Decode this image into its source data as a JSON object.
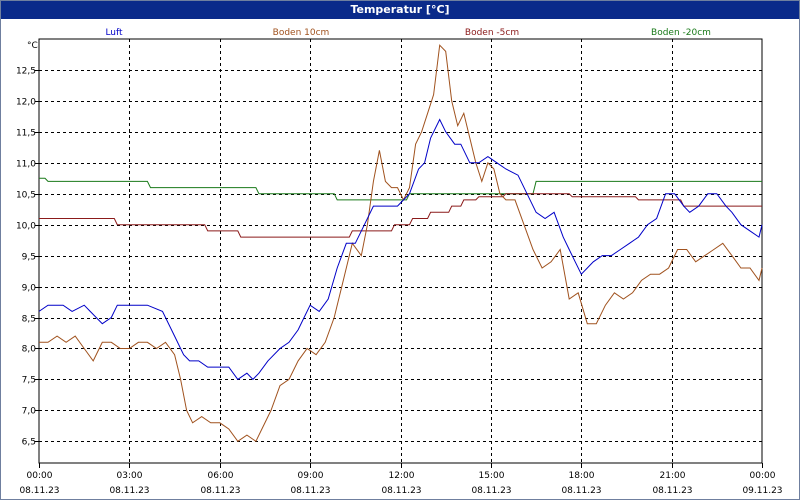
{
  "window": {
    "title": "Temperatur [°C]"
  },
  "chart_data": {
    "type": "line",
    "title": "Temperatur [°C]",
    "ylabel": "°C",
    "xlabel": "",
    "ylim": [
      6.15,
      13.0
    ],
    "xlim_hours": [
      0,
      24
    ],
    "grid": true,
    "legend": "top",
    "y_ticks": [
      "6,5",
      "7,0",
      "7,5",
      "8,0",
      "8,5",
      "9,0",
      "9,5",
      "10,0",
      "10,5",
      "11,0",
      "11,5",
      "12,0",
      "12,5"
    ],
    "y_tick_values": [
      6.5,
      7.0,
      7.5,
      8.0,
      8.5,
      9.0,
      9.5,
      10.0,
      10.5,
      11.0,
      11.5,
      12.0,
      12.5
    ],
    "x_ticks": [
      {
        "time": "00:00",
        "date": "08.11.23"
      },
      {
        "time": "03:00",
        "date": "08.11.23"
      },
      {
        "time": "06:00",
        "date": "08.11.23"
      },
      {
        "time": "09:00",
        "date": "08.11.23"
      },
      {
        "time": "12:00",
        "date": "08.11.23"
      },
      {
        "time": "15:00",
        "date": "08.11.23"
      },
      {
        "time": "18:00",
        "date": "08.11.23"
      },
      {
        "time": "21:00",
        "date": "08.11.23"
      },
      {
        "time": "00:00",
        "date": "09.11.23"
      }
    ],
    "series": [
      {
        "name": "Luft",
        "color": "#0000c8",
        "x": [
          0,
          0.3,
          0.8,
          1.1,
          1.5,
          1.7,
          2.1,
          2.4,
          2.6,
          3.0,
          3.6,
          4.1,
          4.5,
          4.8,
          5.0,
          5.3,
          5.6,
          6.0,
          6.3,
          6.6,
          6.9,
          7.1,
          7.3,
          7.6,
          8.0,
          8.3,
          8.6,
          8.8,
          9.0,
          9.3,
          9.6,
          9.9,
          10.2,
          10.5,
          10.8,
          11.1,
          11.5,
          11.9,
          12.1,
          12.3,
          12.6,
          12.8,
          13.0,
          13.3,
          13.5,
          13.8,
          14.0,
          14.3,
          14.6,
          14.9,
          15.2,
          15.5,
          15.9,
          16.2,
          16.5,
          16.8,
          17.1,
          17.4,
          17.6,
          17.8,
          18.0,
          18.2,
          18.4,
          18.7,
          19.0,
          19.3,
          19.6,
          19.9,
          20.2,
          20.5,
          20.8,
          21.1,
          21.4,
          21.6,
          21.9,
          22.2,
          22.5,
          22.8,
          23.0,
          23.3,
          23.6,
          23.9,
          24.0
        ],
        "y": [
          8.6,
          8.7,
          8.7,
          8.6,
          8.7,
          8.6,
          8.4,
          8.5,
          8.7,
          8.7,
          8.7,
          8.6,
          8.2,
          7.9,
          7.8,
          7.8,
          7.7,
          7.7,
          7.7,
          7.5,
          7.6,
          7.5,
          7.6,
          7.8,
          8.0,
          8.1,
          8.3,
          8.5,
          8.7,
          8.6,
          8.8,
          9.3,
          9.7,
          9.7,
          10.0,
          10.3,
          10.3,
          10.3,
          10.4,
          10.5,
          10.9,
          11.0,
          11.4,
          11.7,
          11.5,
          11.3,
          11.3,
          11.0,
          11.0,
          11.1,
          11.0,
          10.9,
          10.8,
          10.5,
          10.2,
          10.1,
          10.2,
          9.8,
          9.6,
          9.4,
          9.2,
          9.3,
          9.4,
          9.5,
          9.5,
          9.6,
          9.7,
          9.8,
          10.0,
          10.1,
          10.5,
          10.5,
          10.3,
          10.2,
          10.3,
          10.5,
          10.5,
          10.3,
          10.2,
          10.0,
          9.9,
          9.8,
          10.0
        ]
      },
      {
        "name": "Boden 10cm",
        "color": "#a0521e",
        "x": [
          0,
          0.3,
          0.6,
          0.9,
          1.2,
          1.5,
          1.8,
          2.1,
          2.4,
          2.7,
          3.0,
          3.3,
          3.6,
          3.9,
          4.2,
          4.5,
          4.7,
          4.9,
          5.1,
          5.4,
          5.7,
          6.0,
          6.3,
          6.6,
          6.9,
          7.2,
          7.4,
          7.7,
          8.0,
          8.3,
          8.6,
          8.9,
          9.2,
          9.5,
          9.8,
          10.1,
          10.4,
          10.7,
          10.9,
          11.1,
          11.3,
          11.5,
          11.7,
          11.9,
          12.1,
          12.3,
          12.5,
          12.7,
          12.9,
          13.1,
          13.3,
          13.5,
          13.7,
          13.9,
          14.1,
          14.3,
          14.5,
          14.7,
          14.9,
          15.1,
          15.3,
          15.5,
          15.8,
          16.1,
          16.4,
          16.7,
          17.0,
          17.3,
          17.6,
          17.9,
          18.2,
          18.5,
          18.8,
          19.1,
          19.4,
          19.7,
          20.0,
          20.3,
          20.6,
          20.9,
          21.2,
          21.5,
          21.8,
          22.1,
          22.4,
          22.7,
          23.0,
          23.3,
          23.6,
          23.9,
          24.0
        ],
        "y": [
          8.1,
          8.1,
          8.2,
          8.1,
          8.2,
          8.0,
          7.8,
          8.1,
          8.1,
          8.0,
          8.0,
          8.1,
          8.1,
          8.0,
          8.1,
          7.9,
          7.5,
          7.0,
          6.8,
          6.9,
          6.8,
          6.8,
          6.7,
          6.5,
          6.6,
          6.5,
          6.7,
          7.0,
          7.4,
          7.5,
          7.8,
          8.0,
          7.9,
          8.1,
          8.5,
          9.1,
          9.7,
          9.5,
          10.0,
          10.7,
          11.2,
          10.7,
          10.6,
          10.6,
          10.4,
          10.6,
          11.3,
          11.5,
          11.8,
          12.1,
          12.9,
          12.8,
          12.0,
          11.6,
          11.8,
          11.4,
          11.0,
          10.7,
          11.0,
          10.9,
          10.5,
          10.4,
          10.4,
          10.0,
          9.6,
          9.3,
          9.4,
          9.6,
          8.8,
          8.9,
          8.4,
          8.4,
          8.7,
          8.9,
          8.8,
          8.9,
          9.1,
          9.2,
          9.2,
          9.3,
          9.6,
          9.6,
          9.4,
          9.5,
          9.6,
          9.7,
          9.5,
          9.3,
          9.3,
          9.1,
          9.3
        ]
      },
      {
        "name": "Boden -5cm",
        "color": "#8b1a1a",
        "x": [
          0,
          2.5,
          2.6,
          5.5,
          5.6,
          6.6,
          6.7,
          10.3,
          10.4,
          11.7,
          11.8,
          12.3,
          12.4,
          12.9,
          13.0,
          13.6,
          13.7,
          14.0,
          14.1,
          14.5,
          14.6,
          15.4,
          15.5,
          17.6,
          17.7,
          19.8,
          19.9,
          21.3,
          21.4,
          24.0
        ],
        "y": [
          10.1,
          10.1,
          10.0,
          10.0,
          9.9,
          9.9,
          9.8,
          9.8,
          9.9,
          9.9,
          10.0,
          10.0,
          10.1,
          10.1,
          10.2,
          10.2,
          10.3,
          10.3,
          10.4,
          10.4,
          10.45,
          10.45,
          10.5,
          10.5,
          10.45,
          10.45,
          10.4,
          10.4,
          10.3,
          10.3
        ]
      },
      {
        "name": "Boden -20cm",
        "color": "#1a7a1a",
        "x": [
          0,
          0.2,
          0.3,
          3.6,
          3.7,
          7.2,
          7.3,
          9.8,
          9.9,
          12.2,
          12.3,
          16.4,
          16.5,
          24.0
        ],
        "y": [
          10.75,
          10.75,
          10.7,
          10.7,
          10.6,
          10.6,
          10.5,
          10.5,
          10.4,
          10.4,
          10.5,
          10.5,
          10.7,
          10.7
        ]
      }
    ]
  }
}
